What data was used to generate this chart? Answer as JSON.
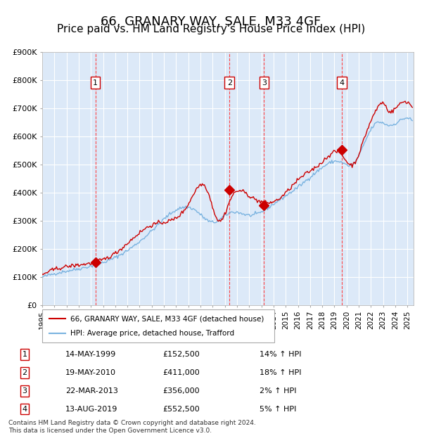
{
  "title": "66, GRANARY WAY, SALE, M33 4GF",
  "subtitle": "Price paid vs. HM Land Registry's House Price Index (HPI)",
  "xlabel": "",
  "ylabel": "",
  "ylim": [
    0,
    900000
  ],
  "yticks": [
    0,
    100000,
    200000,
    300000,
    400000,
    500000,
    600000,
    700000,
    800000,
    900000
  ],
  "ytick_labels": [
    "£0",
    "£100K",
    "£200K",
    "£300K",
    "£400K",
    "£500K",
    "£600K",
    "£700K",
    "£800K",
    "£900K"
  ],
  "xlim_start": 1995.0,
  "xlim_end": 2025.5,
  "xticks": [
    1995,
    1996,
    1997,
    1998,
    1999,
    2000,
    2001,
    2002,
    2003,
    2004,
    2005,
    2006,
    2007,
    2008,
    2009,
    2010,
    2011,
    2012,
    2013,
    2014,
    2015,
    2016,
    2017,
    2018,
    2019,
    2020,
    2021,
    2022,
    2023,
    2024,
    2025
  ],
  "background_color": "#dce9f8",
  "grid_color": "#ffffff",
  "hpi_line_color": "#7ab3e0",
  "price_line_color": "#cc0000",
  "marker_color": "#cc0000",
  "vline_color": "#ff4444",
  "title_fontsize": 13,
  "subtitle_fontsize": 11,
  "transactions": [
    {
      "label": "1",
      "date_year": 1999.37,
      "price": 152500,
      "marker_y": 152500
    },
    {
      "label": "2",
      "date_year": 2010.38,
      "price": 411000,
      "marker_y": 411000
    },
    {
      "label": "3",
      "date_year": 2013.22,
      "price": 356000,
      "marker_y": 356000
    },
    {
      "label": "4",
      "date_year": 2019.62,
      "price": 552500,
      "marker_y": 552500
    }
  ],
  "legend_line1": "66, GRANARY WAY, SALE, M33 4GF (detached house)",
  "legend_line2": "HPI: Average price, detached house, Trafford",
  "table_rows": [
    [
      "1",
      "14-MAY-1999",
      "£152,500",
      "14% ↑ HPI"
    ],
    [
      "2",
      "19-MAY-2010",
      "£411,000",
      "18% ↑ HPI"
    ],
    [
      "3",
      "22-MAR-2013",
      "£356,000",
      "2% ↑ HPI"
    ],
    [
      "4",
      "13-AUG-2019",
      "£552,500",
      "5% ↑ HPI"
    ]
  ],
  "footnote": "Contains HM Land Registry data © Crown copyright and database right 2024.\nThis data is licensed under the Open Government Licence v3.0.",
  "hpi_base_value": 100000,
  "hpi_base_year": 1995.0
}
